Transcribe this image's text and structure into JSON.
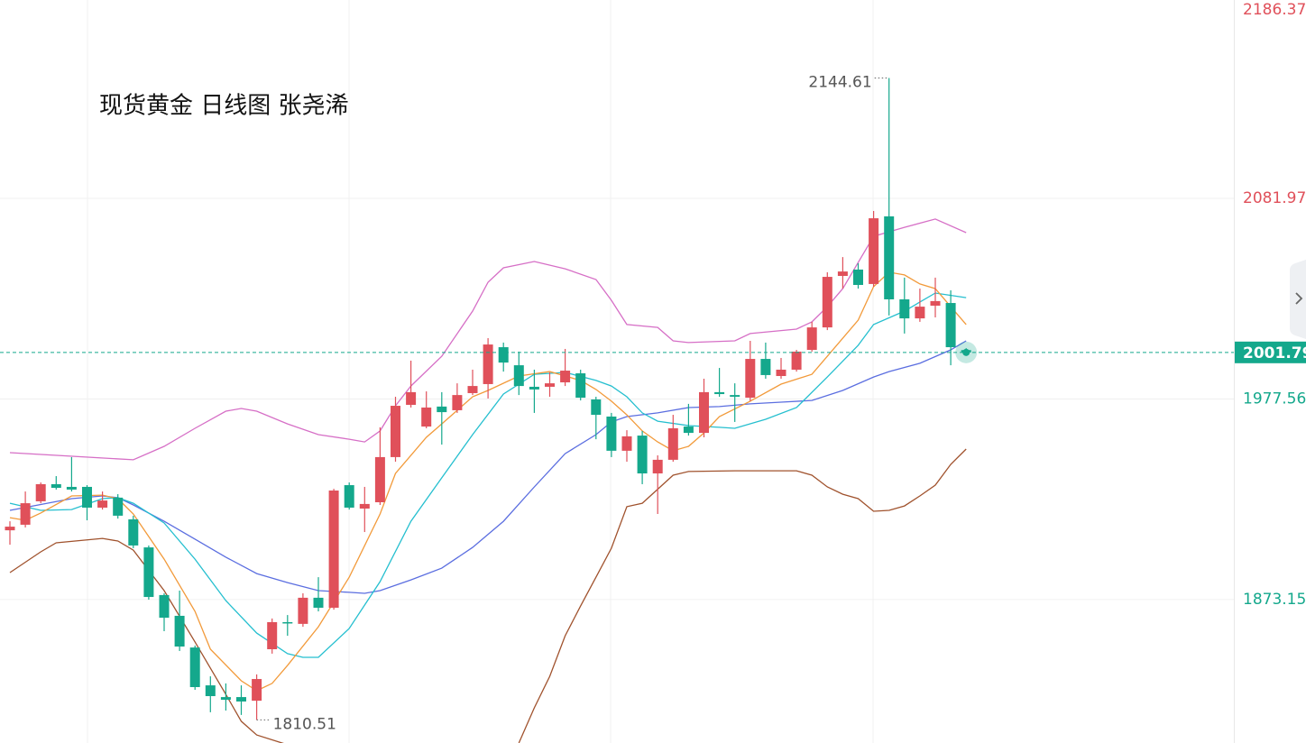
{
  "chart_data": {
    "type": "candlestick",
    "title": "现货黄金 日线图  张尧浠",
    "up_color": "#e0505a",
    "down_color": "#14a88c",
    "ylim": [
      1798.5,
      2185.2
    ],
    "yticks": [
      2186.37,
      2081.97,
      1977.56,
      1873.15
    ],
    "grid": true,
    "open": [
      1909.2,
      1912.1,
      1924.3,
      1933.2,
      1931.8,
      1931.8,
      1921.0,
      1926.2,
      1914.9,
      1900.3,
      1875.5,
      1864.7,
      1848.2,
      1828.5,
      1822.4,
      1822.4,
      1820.5,
      1847.3,
      1861.4,
      1860.5,
      1874.1,
      1868.9,
      1932.7,
      1920.5,
      1923.8,
      1947.3,
      1974.5,
      1963.2,
      1973.6,
      1971.7,
      1980.6,
      1985.3,
      2004.5,
      1995.1,
      1983.9,
      1983.9,
      1986.2,
      1990.9,
      1977.3,
      1968.4,
      1950.6,
      1958.5,
      1938.8,
      1945.9,
      1963.2,
      1959.9,
      1981.1,
      1979.6,
      1978.2,
      1998.4,
      1989.5,
      1992.8,
      2003.1,
      2014.8,
      2041.6,
      2044.9,
      2037.4,
      2072.6,
      2029.4,
      2019.5,
      2026.1,
      2027.5,
      2003.0
    ],
    "high": [
      1913.9,
      1929.4,
      1934.1,
      1937.4,
      1947.3,
      1932.7,
      1929.4,
      1928.0,
      1916.8,
      1901.3,
      1876.4,
      1877.8,
      1849.2,
      1833.2,
      1829.5,
      1828.5,
      1834.2,
      1863.3,
      1865.1,
      1876.4,
      1884.8,
      1930.8,
      1934.1,
      1931.8,
      1962.8,
      1978.7,
      1997.5,
      1981.5,
      1981.1,
      1985.7,
      1992.8,
      2009.2,
      2006.9,
      2002.2,
      1992.8,
      1991.4,
      2003.6,
      1992.8,
      1978.7,
      1970.3,
      1961.3,
      1960.9,
      1948.2,
      1969.3,
      1975.0,
      1988.1,
      1993.7,
      1985.7,
      2007.8,
      2006.9,
      1998.9,
      2003.1,
      2017.7,
      2043.5,
      2051.4,
      2048.2,
      2075.4,
      2144.61,
      2040.7,
      2035.0,
      2040.7,
      2034.1,
      2004.0
    ],
    "low": [
      1901.7,
      1910.7,
      1923.3,
      1930.4,
      1929.4,
      1914.4,
      1920.0,
      1915.3,
      1899.9,
      1873.1,
      1856.7,
      1846.4,
      1826.2,
      1814.5,
      1815.4,
      1813.1,
      1810.51,
      1845.0,
      1854.3,
      1859.0,
      1867.0,
      1867.9,
      1920.0,
      1908.3,
      1922.4,
      1944.9,
      1973.1,
      1962.3,
      1953.8,
      1970.3,
      1979.6,
      1977.8,
      1991.8,
      1979.6,
      1970.3,
      1978.7,
      1984.3,
      1976.8,
      1956.6,
      1947.3,
      1944.9,
      1933.2,
      1917.7,
      1944.9,
      1958.5,
      1957.6,
      1978.7,
      1965.6,
      1976.4,
      1988.1,
      1988.1,
      1991.8,
      2002.2,
      2013.4,
      2035.0,
      2035.0,
      2036.0,
      2021.0,
      2011.6,
      2017.7,
      2020.0,
      1995.1,
      2000.5
    ],
    "close": [
      1911.1,
      1923.3,
      1933.2,
      1931.3,
      1930.4,
      1921.0,
      1924.7,
      1916.8,
      1901.3,
      1874.5,
      1863.7,
      1848.7,
      1827.6,
      1822.9,
      1821.0,
      1820.1,
      1831.8,
      1861.4,
      1860.9,
      1874.1,
      1868.9,
      1929.9,
      1921.0,
      1922.9,
      1947.3,
      1974.0,
      1981.1,
      1973.1,
      1970.7,
      1979.6,
      1984.3,
      2005.9,
      1996.5,
      1984.3,
      1982.5,
      1985.7,
      1992.3,
      1978.2,
      1969.3,
      1950.6,
      1958.1,
      1938.8,
      1945.9,
      1962.3,
      1959.9,
      1981.1,
      1980.1,
      1978.7,
      1998.4,
      1990.0,
      1992.8,
      2002.2,
      2014.8,
      2041.1,
      2043.9,
      2036.9,
      2071.6,
      2029.4,
      2019.5,
      2025.6,
      2028.5,
      2004.5,
      2001.79
    ],
    "lines": [
      {
        "color": "#d66fc6",
        "x": [
          0,
          8,
          10,
          12,
          14,
          15,
          16,
          18,
          20,
          22,
          23,
          24,
          25,
          26,
          28,
          30,
          31,
          32,
          34,
          36,
          38,
          39,
          40,
          42,
          43,
          44,
          47,
          48,
          51,
          52,
          53,
          54,
          56,
          58,
          60,
          62
        ],
        "values": [
          1949.6,
          1945.9,
          1952.9,
          1962.3,
          1971.2,
          1972.6,
          1971.2,
          1964.6,
          1959.0,
          1956.6,
          1955.2,
          1960.9,
          1974.0,
          1984.3,
          1999.8,
          2023.3,
          2038.3,
          2045.8,
          2049.1,
          2045.3,
          2039.7,
          2028.9,
          2016.3,
          2014.8,
          2007.8,
          2006.9,
          2007.8,
          2011.6,
          2013.9,
          2017.7,
          2025.6,
          2035.0,
          2062.2,
          2066.9,
          2071.2,
          2064.1
        ]
      },
      {
        "color": "#a0522d",
        "x": [
          0,
          2,
          3,
          6,
          7,
          8,
          10,
          12,
          14,
          15,
          16,
          18,
          26,
          33,
          34,
          35,
          36,
          37,
          38,
          39,
          40,
          41,
          43,
          44,
          47,
          51,
          52,
          53,
          54,
          55,
          56,
          57,
          58,
          59,
          60,
          61,
          62
        ],
        "values": [
          1887.2,
          1898.0,
          1902.7,
          1905.0,
          1903.6,
          1898.9,
          1877.8,
          1851.1,
          1823.8,
          1809.8,
          1802.7,
          1797.6,
          null,
          1798.5,
          1816.8,
          1833.2,
          1854.3,
          1869.8,
          1884.8,
          1899.9,
          1921.5,
          1923.3,
          1937.9,
          1939.8,
          1940.2,
          1940.2,
          1937.9,
          1931.8,
          1928.0,
          1925.7,
          1919.1,
          1919.6,
          1921.9,
          1927.1,
          1932.7,
          1943.5,
          1951.5
        ]
      },
      {
        "color": "#5b6ee0",
        "x": [
          0,
          4,
          6,
          7,
          8,
          10,
          12,
          14,
          16,
          18,
          20,
          22,
          23,
          24,
          26,
          28,
          30,
          32,
          34,
          36,
          38,
          39,
          40,
          42,
          44,
          46,
          48,
          50,
          52,
          54,
          56,
          57,
          59,
          61,
          62
        ],
        "values": [
          1919.6,
          1925.7,
          1927.1,
          1926.2,
          1922.4,
          1913.9,
          1904.6,
          1895.2,
          1886.7,
          1882.0,
          1877.8,
          1876.9,
          1876.4,
          1877.8,
          1883.4,
          1889.5,
          1900.3,
          1913.9,
          1931.8,
          1949.1,
          1959.0,
          1965.6,
          1968.4,
          1970.3,
          1973.1,
          1973.6,
          1975.0,
          1975.9,
          1976.8,
          1982.0,
          1989.0,
          1991.8,
          1996.1,
          2003.1,
          2007.8
        ]
      },
      {
        "color": "#25bfcf",
        "x": [
          0,
          2,
          4,
          6,
          7,
          8,
          10,
          12,
          14,
          16,
          18,
          19,
          20,
          22,
          24,
          26,
          28,
          30,
          32,
          34,
          36,
          38,
          39,
          40,
          41,
          42,
          44,
          46,
          47,
          49,
          51,
          53,
          55,
          56,
          58,
          60,
          62
        ],
        "values": [
          1923.3,
          1919.6,
          1920.0,
          1925.7,
          1926.2,
          1923.3,
          1913.0,
          1894.2,
          1872.6,
          1855.7,
          1845.0,
          1843.1,
          1843.1,
          1858.1,
          1882.5,
          1913.9,
          1936.5,
          1959.0,
          1980.1,
          1990.4,
          1991.4,
          1987.2,
          1984.3,
          1978.7,
          1970.3,
          1966.0,
          1963.7,
          1962.8,
          1962.3,
          1967.0,
          1973.1,
          1989.0,
          2005.5,
          2016.3,
          2023.3,
          2032.7,
          2030.3
        ]
      },
      {
        "color": "#f29a3a",
        "x": [
          0,
          1,
          2,
          4,
          6,
          7,
          8,
          10,
          12,
          13,
          15,
          16,
          17,
          18,
          20,
          22,
          24,
          25,
          27,
          28,
          30,
          31,
          33,
          35,
          37,
          38,
          39,
          40,
          41,
          42,
          43,
          44,
          45,
          46,
          48,
          50,
          52,
          53,
          55,
          56,
          57,
          58,
          59,
          60,
          61,
          62
        ],
        "values": [
          1915.8,
          1914.4,
          1918.2,
          1927.1,
          1927.5,
          1925.7,
          1917.7,
          1894.2,
          1867.0,
          1847.3,
          1830.9,
          1825.7,
          1829.5,
          1838.9,
          1859.0,
          1884.8,
          1917.7,
          1938.8,
          1957.6,
          1964.6,
          1978.7,
          1982.0,
          1989.5,
          1991.8,
          1987.2,
          1982.5,
          1976.4,
          1969.3,
          1960.9,
          1955.2,
          1950.6,
          1952.9,
          1959.9,
          1968.4,
          1976.4,
          1985.3,
          1990.4,
          1999.8,
          2018.6,
          2036.0,
          2043.5,
          2042.1,
          2037.4,
          2035.0,
          2025.6,
          2016.3
        ]
      }
    ]
  }
}
